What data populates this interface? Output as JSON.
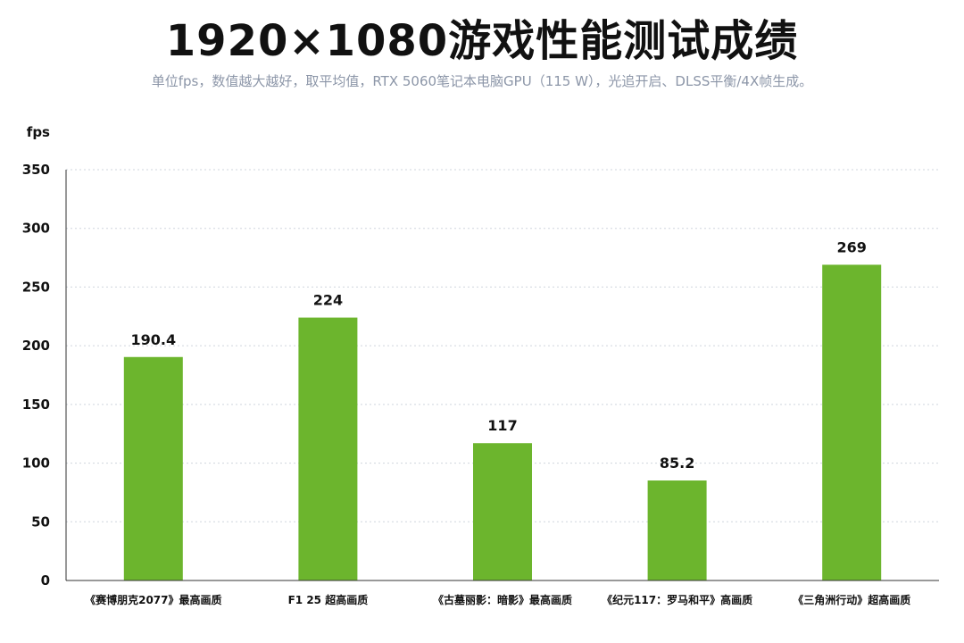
{
  "header": {
    "title": "1920×1080游戏性能测试成绩",
    "subtitle": "单位fps，数值越大越好，取平均值，RTX 5060笔记本电脑GPU（115 W），光追开启、DLSS平衡/4X帧生成。"
  },
  "chart_data": {
    "type": "bar",
    "title": "1920×1080游戏性能测试成绩",
    "subtitle": "单位fps，数值越大越好，取平均值，RTX 5060笔记本电脑GPU（115 W），光追开启、DLSS平衡/4X帧生成。",
    "ylabel": "fps",
    "xlabel": "",
    "ylim": [
      0,
      350
    ],
    "yticks": [
      0,
      50,
      100,
      150,
      200,
      250,
      300,
      350
    ],
    "ytick_labels": [
      "0",
      "50",
      "100",
      "150",
      "200",
      "250",
      "300",
      "350"
    ],
    "grid": true,
    "categories": [
      "《赛博朋克2077》最高画质",
      "F1 25 超高画质",
      "《古墓丽影：暗影》最高画质",
      "《纪元117：罗马和平》高画质",
      "《三角洲行动》超高画质"
    ],
    "values": [
      190.4,
      224,
      117,
      85.2,
      269
    ],
    "value_labels": [
      "190.4",
      "224",
      "117",
      "85.2",
      "269"
    ],
    "bar_color": "#6cb52d",
    "gridline_color": "#cfd5dd",
    "axis_color": "#333333"
  }
}
